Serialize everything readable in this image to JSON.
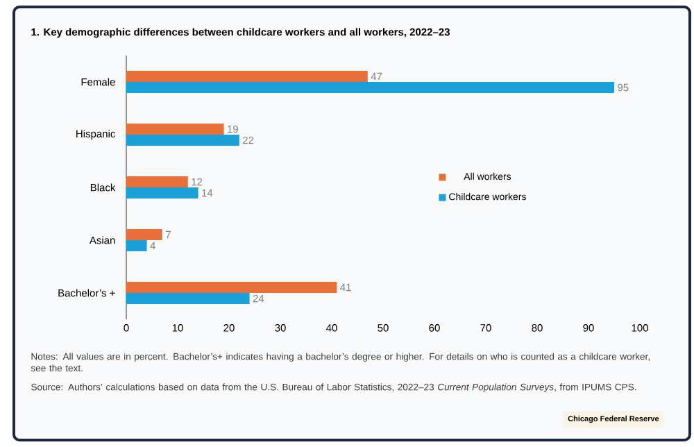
{
  "chart_data": {
    "type": "bar",
    "orientation": "horizontal",
    "title": "1. Key demographic differences between childcare workers and all workers, 2022–23",
    "categories": [
      "Female",
      "Hispanic",
      "Black",
      "Asian",
      "Bachelor’s +"
    ],
    "series": [
      {
        "name": "All workers",
        "color": "#e8703a",
        "values": [
          47,
          19,
          12,
          7,
          41
        ]
      },
      {
        "name": "Childcare workers",
        "color": "#1ba1d8",
        "values": [
          95,
          22,
          14,
          4,
          24
        ]
      }
    ],
    "xlim": [
      0,
      100
    ],
    "xticks": [
      0,
      10,
      20,
      30,
      40,
      50,
      60,
      70,
      80,
      90,
      100
    ],
    "data_labels": true,
    "legend": "right",
    "grid": false,
    "annotations": [
      "Notes: All values are in percent. Bachelor’s+ indicates having a bachelor’s degree or higher. For details on who is counted as a childcare worker, see the text.",
      "Source: Authors’ calculations based on data from the U.S. Bureau of Labor Statistics, 2022–23 *Current Population Surveys*, from IPUMS CPS.",
      "Chicago Federal Reserve"
    ]
  }
}
